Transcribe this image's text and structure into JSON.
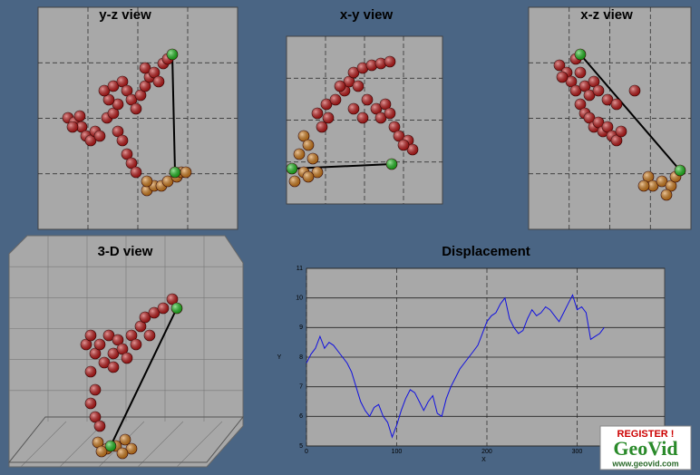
{
  "chart_data": [
    {
      "type": "scatter",
      "title": "y-z view",
      "xlim": [
        0,
        220
      ],
      "ylim": [
        0,
        245
      ],
      "series": [
        {
          "color": "#c41a1a",
          "x": [
            33,
            40,
            48,
            53,
            58,
            63,
            46,
            38,
            68,
            76,
            83,
            88,
            78,
            73,
            83,
            93,
            98,
            103,
            108,
            113,
            118,
            123,
            118,
            128,
            138,
            143,
            133,
            88,
            93,
            98,
            103,
            108
          ],
          "values": [
            123,
            118,
            113,
            103,
            98,
            108,
            125,
            113,
            103,
            123,
            128,
            138,
            143,
            153,
            158,
            163,
            153,
            143,
            133,
            148,
            158,
            168,
            178,
            173,
            183,
            188,
            163,
            108,
            98,
            83,
            73,
            63
          ]
        },
        {
          "color": "#d9821e",
          "x": [
            120,
            128,
            136,
            143,
            153,
            158,
            163,
            120
          ],
          "values": [
            43,
            48,
            48,
            53,
            58,
            63,
            63,
            53
          ]
        },
        {
          "color": "#22c422",
          "x": [
            148,
            151
          ],
          "values": [
            193,
            63
          ]
        }
      ]
    },
    {
      "type": "scatter",
      "title": "x-y view",
      "xlim": [
        0,
        172
      ],
      "ylim": [
        0,
        185
      ],
      "series": [
        {
          "color": "#c41a1a",
          "x": [
            46,
            39,
            34,
            44,
            54,
            64,
            69,
            74,
            84,
            94,
            104,
            114,
            79,
            89,
            99,
            104,
            109,
            114,
            119,
            124,
            134,
            139,
            129,
            84,
            74,
            59
          ],
          "values": [
            95,
            85,
            100,
            110,
            115,
            125,
            135,
            145,
            150,
            153,
            155,
            157,
            130,
            115,
            105,
            95,
            110,
            100,
            85,
            75,
            70,
            60,
            65,
            95,
            105,
            130
          ]
        },
        {
          "color": "#d9821e",
          "x": [
            19,
            24,
            14,
            29,
            19,
            34,
            9,
            24
          ],
          "values": [
            75,
            65,
            55,
            50,
            35,
            35,
            25,
            30
          ]
        },
        {
          "color": "#22c422",
          "x": [
            6,
            116
          ],
          "values": [
            39,
            44
          ]
        }
      ]
    },
    {
      "type": "scatter",
      "title": "x-z view",
      "xlim": [
        0,
        179
      ],
      "ylim": [
        0,
        245
      ],
      "series": [
        {
          "color": "#c41a1a",
          "x": [
            34,
            42,
            47,
            52,
            57,
            62,
            67,
            57,
            62,
            67,
            72,
            77,
            82,
            87,
            92,
            97,
            102,
            72,
            77,
            87,
            97,
            117,
            52,
            37
          ],
          "values": [
            181,
            173,
            163,
            153,
            173,
            158,
            148,
            138,
            128,
            123,
            113,
            118,
            108,
            113,
            103,
            98,
            108,
            163,
            153,
            143,
            138,
            153,
            188,
            168
          ]
        },
        {
          "color": "#d9821e",
          "x": [
            132,
            137,
            147,
            157,
            127,
            152,
            162
          ],
          "values": [
            58,
            48,
            53,
            48,
            48,
            38,
            58
          ]
        },
        {
          "color": "#22c422",
          "x": [
            57,
            167
          ],
          "values": [
            193,
            65
          ]
        }
      ]
    },
    {
      "type": "scatter3d",
      "title": "3-D view",
      "xlim": [
        0,
        258
      ],
      "ylim": [
        0,
        255
      ],
      "series": [
        {
          "color": "#c41a1a",
          "x": [
            85,
            90,
            95,
            100,
            105,
            110,
            115,
            120,
            125,
            130,
            135,
            140,
            145,
            150,
            155,
            160,
            170,
            180,
            90,
            95,
            90,
            95,
            100,
            115
          ],
          "values": [
            135,
            145,
            125,
            135,
            115,
            145,
            125,
            140,
            130,
            120,
            145,
            135,
            155,
            165,
            145,
            170,
            175,
            185,
            105,
            85,
            70,
            55,
            45,
            110
          ]
        },
        {
          "color": "#d9821e",
          "x": [
            98,
            108,
            118,
            128,
            135,
            125,
            102
          ],
          "values": [
            27,
            20,
            23,
            30,
            20,
            15,
            17
          ]
        },
        {
          "color": "#22c422",
          "x": [
            185,
            112
          ],
          "values": [
            175,
            23
          ]
        }
      ]
    },
    {
      "type": "line",
      "title": "Displacement",
      "x_label": "X",
      "y_label": "Y",
      "xlim": [
        0,
        397
      ],
      "ylim": [
        5,
        11
      ],
      "xticks": [
        0,
        100,
        200,
        300
      ],
      "yticks": [
        5,
        6,
        7,
        8,
        9,
        10,
        11
      ],
      "color": "#1010e0",
      "x": [
        0,
        5,
        10,
        15,
        20,
        25,
        30,
        35,
        40,
        45,
        50,
        55,
        60,
        65,
        70,
        75,
        80,
        85,
        90,
        95,
        100,
        105,
        110,
        115,
        120,
        125,
        130,
        135,
        140,
        145,
        150,
        155,
        160,
        165,
        170,
        175,
        180,
        185,
        190,
        195,
        200,
        205,
        210,
        215,
        220,
        225,
        230,
        235,
        240,
        245,
        250,
        255,
        260,
        265,
        270,
        275,
        280,
        285,
        290,
        295,
        300,
        305,
        310,
        315,
        320,
        325,
        330
      ],
      "values": [
        7.8,
        8.1,
        8.3,
        8.7,
        8.3,
        8.5,
        8.4,
        8.2,
        8.0,
        7.8,
        7.5,
        7.0,
        6.5,
        6.2,
        6.0,
        6.3,
        6.4,
        6.0,
        5.8,
        5.3,
        5.7,
        6.2,
        6.6,
        6.9,
        6.8,
        6.5,
        6.2,
        6.5,
        6.7,
        6.1,
        6.0,
        6.6,
        7.0,
        7.3,
        7.6,
        7.8,
        8.0,
        8.2,
        8.4,
        8.8,
        9.2,
        9.4,
        9.5,
        9.8,
        10.0,
        9.3,
        9.0,
        8.8,
        8.9,
        9.3,
        9.6,
        9.4,
        9.5,
        9.7,
        9.6,
        9.4,
        9.2,
        9.5,
        9.8,
        10.1,
        9.6,
        9.7,
        9.5,
        8.6,
        8.7,
        8.8,
        9.0
      ]
    }
  ],
  "watermark": {
    "register": "REGISTER !",
    "brand": "GeoVid",
    "url": "www.geovid.com"
  }
}
